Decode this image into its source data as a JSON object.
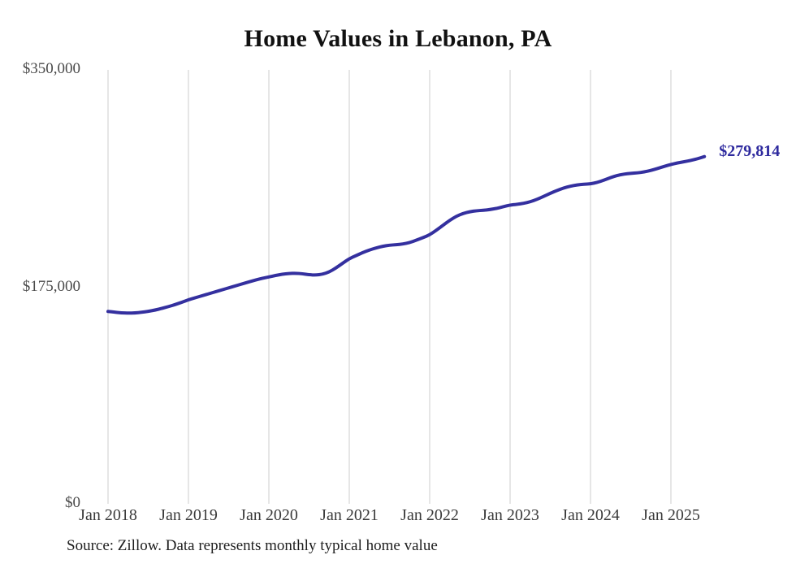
{
  "source_note": "Source: Zillow. Data represents monthly typical home value",
  "chart_data": {
    "type": "line",
    "title": "Home Values in Lebanon, PA",
    "xlabel": "",
    "ylabel": "",
    "y_max": 350000,
    "y_min": 0,
    "grid": "vertical-only",
    "legend": "none",
    "line_color": "#34309f",
    "grid_color": "#cccccc",
    "end_label": "$279,814",
    "end_value": 279814,
    "y_tick_labels": [
      "$350,000",
      "$175,000",
      "$0"
    ],
    "y_tick_values": [
      350000,
      175000,
      0
    ],
    "x_tick_labels": [
      "Jan 2018",
      "Jan 2019",
      "Jan 2020",
      "Jan 2021",
      "Jan 2022",
      "Jan 2023",
      "Jan 2024",
      "Jan 2025"
    ],
    "months_per_tick": 12,
    "months": [
      "2018-01",
      "2018-02",
      "2018-03",
      "2018-04",
      "2018-05",
      "2018-06",
      "2018-07",
      "2018-08",
      "2018-09",
      "2018-10",
      "2018-11",
      "2018-12",
      "2019-01",
      "2019-02",
      "2019-03",
      "2019-04",
      "2019-05",
      "2019-06",
      "2019-07",
      "2019-08",
      "2019-09",
      "2019-10",
      "2019-11",
      "2019-12",
      "2020-01",
      "2020-02",
      "2020-03",
      "2020-04",
      "2020-05",
      "2020-06",
      "2020-07",
      "2020-08",
      "2020-09",
      "2020-10",
      "2020-11",
      "2020-12",
      "2021-01",
      "2021-02",
      "2021-03",
      "2021-04",
      "2021-05",
      "2021-06",
      "2021-07",
      "2021-08",
      "2021-09",
      "2021-10",
      "2021-11",
      "2021-12",
      "2022-01",
      "2022-02",
      "2022-03",
      "2022-04",
      "2022-05",
      "2022-06",
      "2022-07",
      "2022-08",
      "2022-09",
      "2022-10",
      "2022-11",
      "2022-12",
      "2023-01",
      "2023-02",
      "2023-03",
      "2023-04",
      "2023-05",
      "2023-06",
      "2023-07",
      "2023-08",
      "2023-09",
      "2023-10",
      "2023-11",
      "2023-12",
      "2024-01",
      "2024-02",
      "2024-03",
      "2024-04",
      "2024-05",
      "2024-06",
      "2024-07",
      "2024-08",
      "2024-09",
      "2024-10",
      "2024-11",
      "2024-12",
      "2025-01",
      "2025-02",
      "2025-03",
      "2025-04",
      "2025-05",
      "2025-06"
    ],
    "values": [
      155000,
      154400,
      153900,
      153700,
      153800,
      154300,
      155100,
      156100,
      157400,
      158900,
      160500,
      162400,
      164400,
      166000,
      167600,
      169200,
      170800,
      172400,
      174000,
      175600,
      177200,
      178800,
      180300,
      181700,
      182800,
      184000,
      185000,
      185600,
      185800,
      185400,
      184600,
      184300,
      185000,
      186800,
      190000,
      193800,
      197500,
      200000,
      202400,
      204500,
      206200,
      207600,
      208400,
      208800,
      209300,
      210500,
      212400,
      214500,
      216700,
      220500,
      224500,
      228500,
      231800,
      234000,
      235400,
      236200,
      236500,
      237100,
      238100,
      239400,
      240800,
      241300,
      242100,
      243400,
      245300,
      247700,
      250200,
      252500,
      254500,
      256000,
      257000,
      257500,
      257800,
      259000,
      260800,
      262900,
      264600,
      265700,
      266300,
      266700,
      267400,
      268600,
      270200,
      271900,
      273500,
      274700,
      275700,
      276700,
      278100,
      279814
    ]
  }
}
